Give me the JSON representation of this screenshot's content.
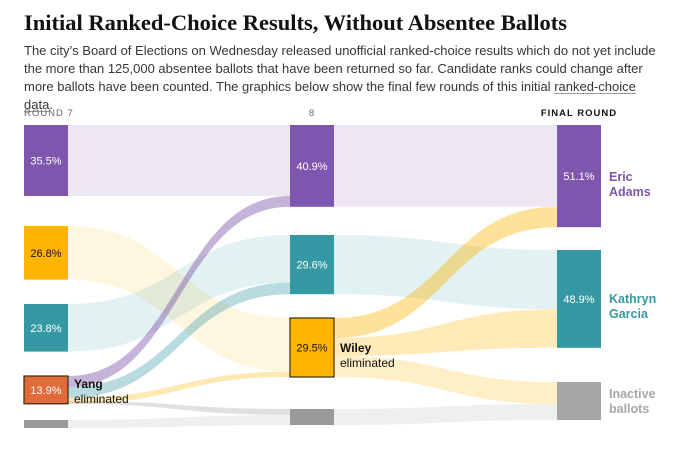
{
  "title": "Initial Ranked-Choice Results, Without Absentee Ballots",
  "subtitle": {
    "text": "The city’s Board of Elections on Wednesday released unofficial ranked-choice results which do not yet include the more than 125,000 absentee ballots that have been returned so far. Candidate ranks could change after more ballots have been counted. The graphics below show the final few rounds of this initial ",
    "link": "ranked-choice data",
    "end": "."
  },
  "colors": {
    "adams": "#7f56ae",
    "wiley": "#ffb400",
    "garcia": "#3599a3",
    "yang": "#e06b3b",
    "inactive": "#a6a6a6"
  },
  "chart_data": {
    "type": "sankey",
    "rounds": [
      "ROUND 7",
      "8",
      "FINAL ROUND"
    ],
    "candidates": [
      {
        "key": "adams",
        "name": "Eric Adams",
        "label_lines": [
          "Eric",
          "Adams"
        ],
        "values": [
          35.5,
          40.9,
          51.1
        ]
      },
      {
        "key": "wiley",
        "name": "Wiley",
        "values": [
          26.8,
          29.5,
          null
        ],
        "eliminated_text": "eliminated"
      },
      {
        "key": "garcia",
        "name": "Kathryn Garcia",
        "label_lines": [
          "Kathryn",
          "Garcia"
        ],
        "values": [
          23.8,
          29.6,
          48.9
        ]
      },
      {
        "key": "yang",
        "name": "Yang",
        "values": [
          13.9,
          null,
          null
        ],
        "eliminated_text": "eliminated"
      },
      {
        "key": "inactive",
        "name": "Inactive ballots",
        "label_lines": [
          "Inactive",
          "ballots"
        ],
        "values": [
          null,
          null,
          null
        ]
      }
    ]
  }
}
